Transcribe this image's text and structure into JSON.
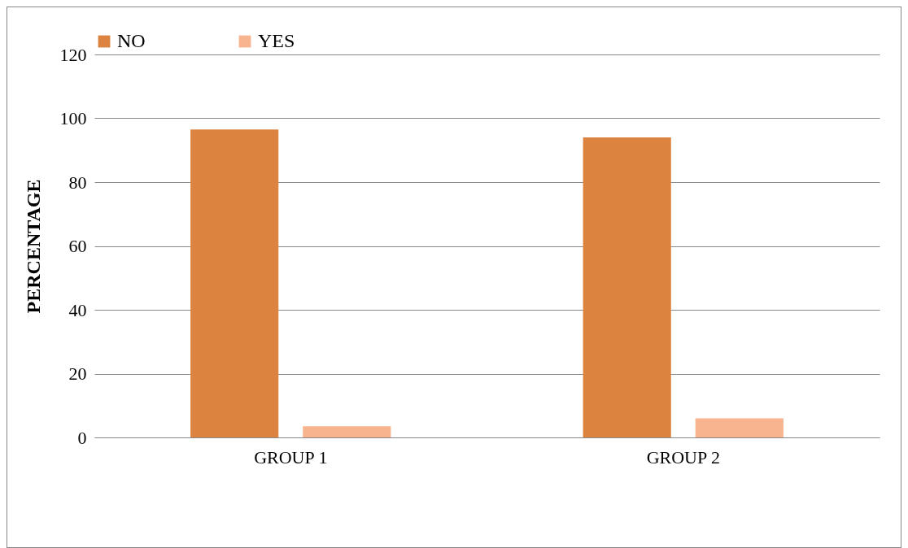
{
  "chart_data": {
    "type": "bar",
    "ylabel": "PERCENTAGE",
    "categories": [
      "GROUP 1",
      "GROUP 2"
    ],
    "series": [
      {
        "name": "NO",
        "color": "#dc843f",
        "values": [
          96.5,
          94
        ]
      },
      {
        "name": "YES",
        "color": "#f8b48f",
        "values": [
          3.5,
          6
        ]
      }
    ],
    "ylim": [
      0,
      120
    ],
    "yticks": [
      0,
      20,
      40,
      60,
      80,
      100,
      120
    ],
    "grid": "y",
    "legend": "top"
  }
}
